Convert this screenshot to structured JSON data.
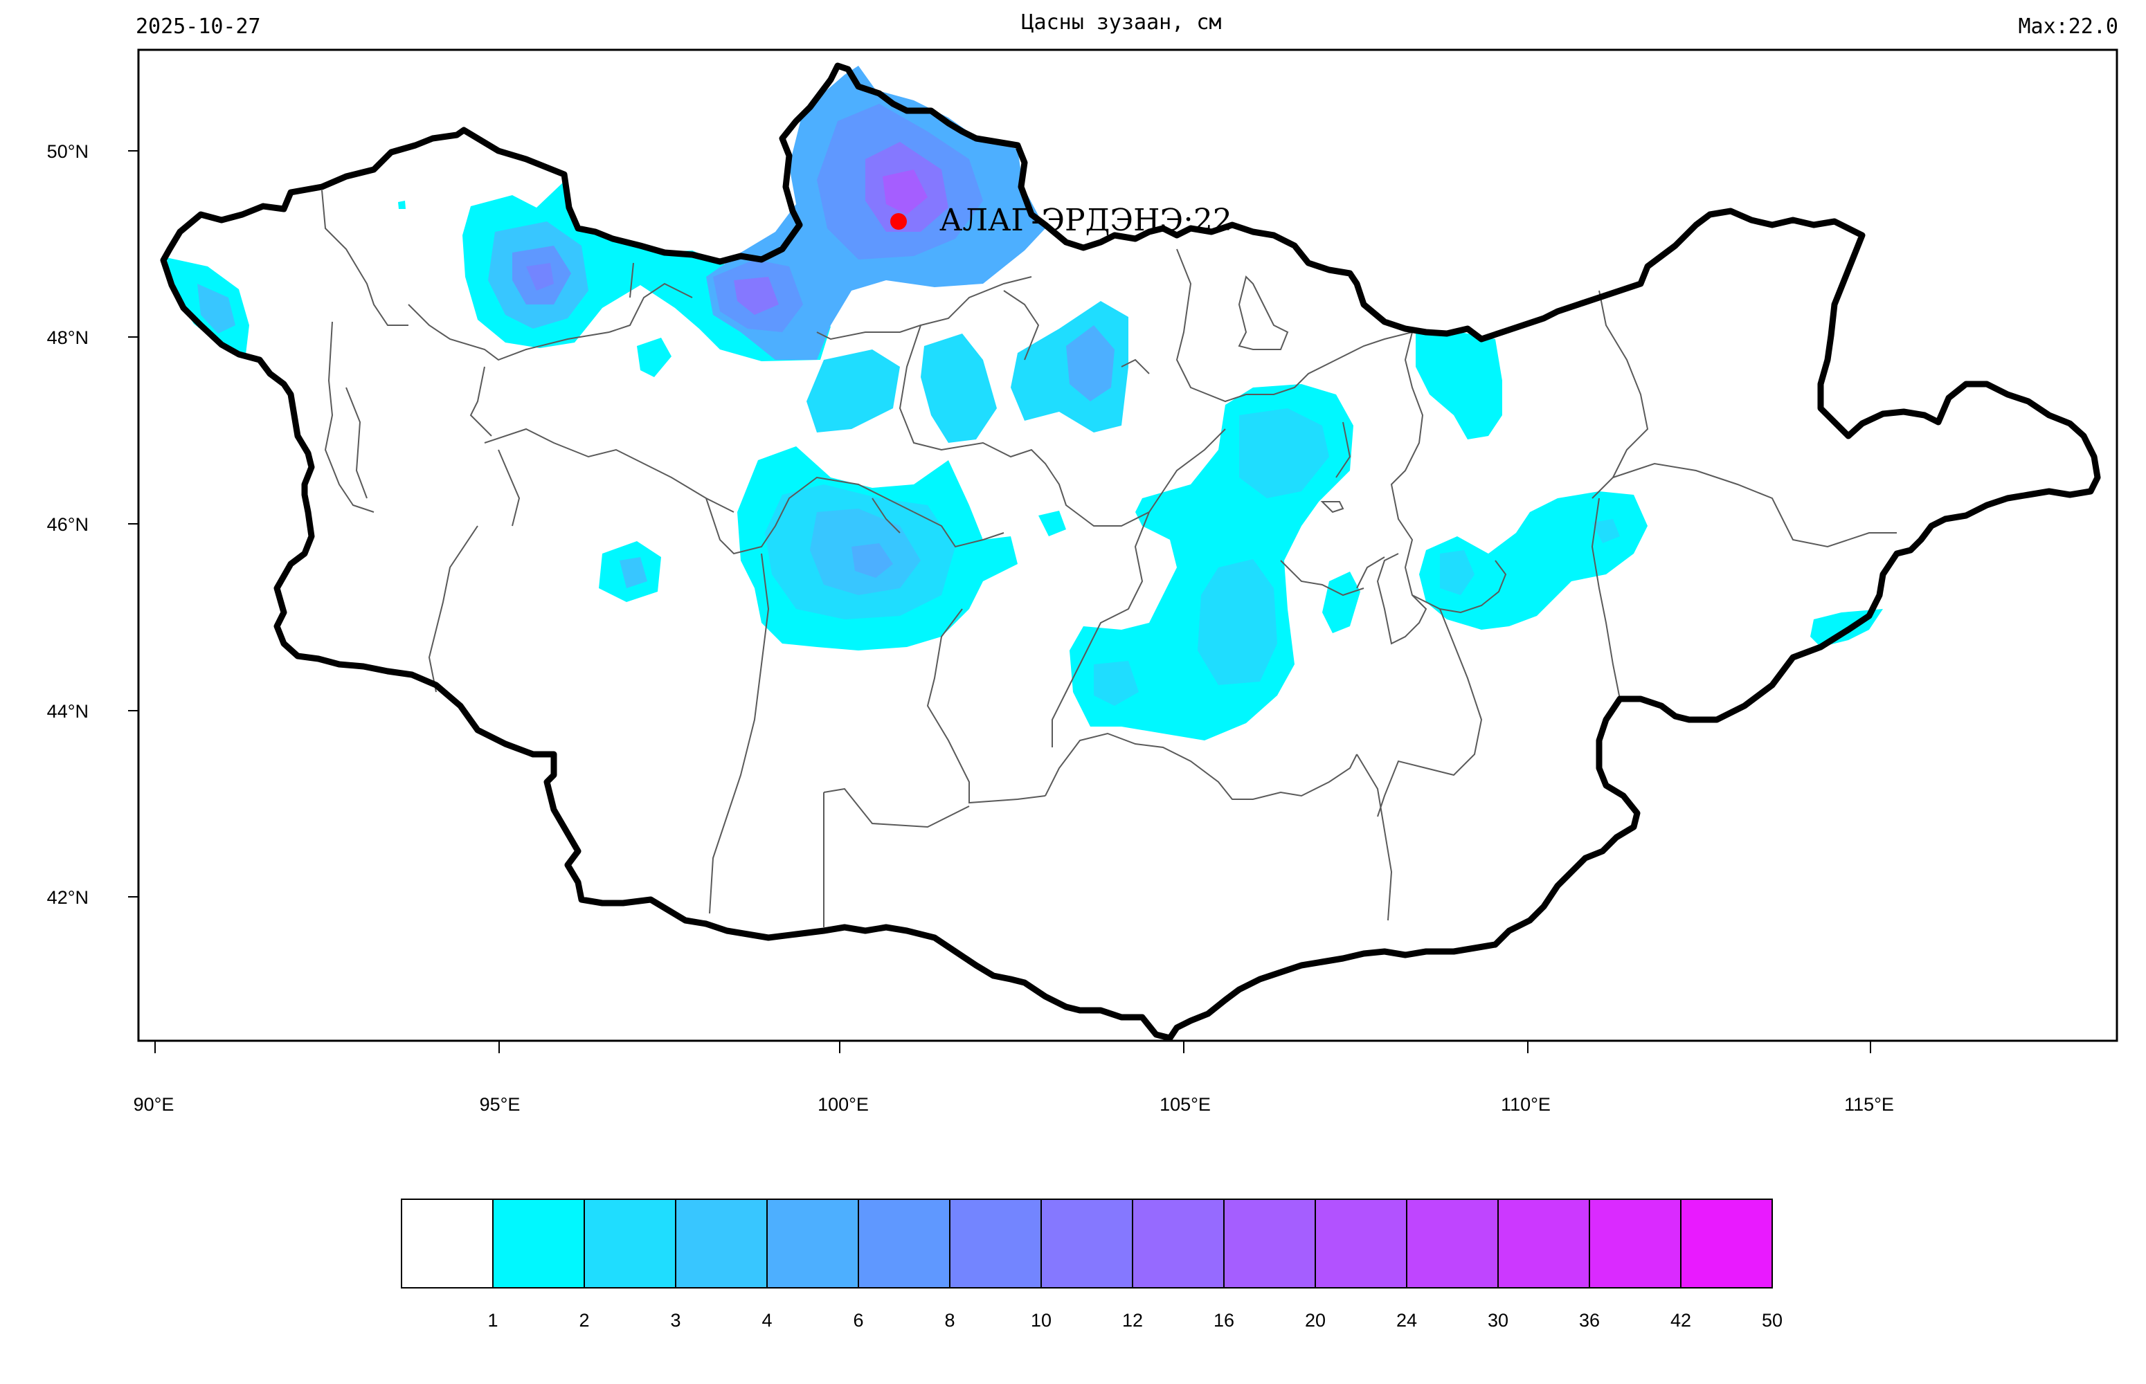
{
  "header": {
    "date": "2025-10-27",
    "title": "Цасны зузаан, см",
    "max_label": "Max:22.0"
  },
  "map": {
    "lat_ticks": [
      "50°N",
      "48°N",
      "46°N",
      "44°N",
      "42°N"
    ],
    "lon_ticks": [
      "90°E",
      "95°E",
      "100°E",
      "105°E",
      "110°E",
      "115°E"
    ],
    "marker": {
      "label": "АЛАГ-ЭРДЭНЭ:22",
      "color": "#ff0000"
    }
  },
  "legend": {
    "labels": [
      "1",
      "2",
      "3",
      "4",
      "6",
      "8",
      "10",
      "12",
      "16",
      "20",
      "24",
      "30",
      "36",
      "42",
      "50"
    ],
    "colors": [
      "#ffffff",
      "#00f8ff",
      "#1fddff",
      "#38c6ff",
      "#4dafff",
      "#5f98ff",
      "#7385ff",
      "#8578ff",
      "#966aff",
      "#a55eff",
      "#b252ff",
      "#bf45ff",
      "#cc38ff",
      "#da2aff",
      "#e91aff"
    ]
  }
}
